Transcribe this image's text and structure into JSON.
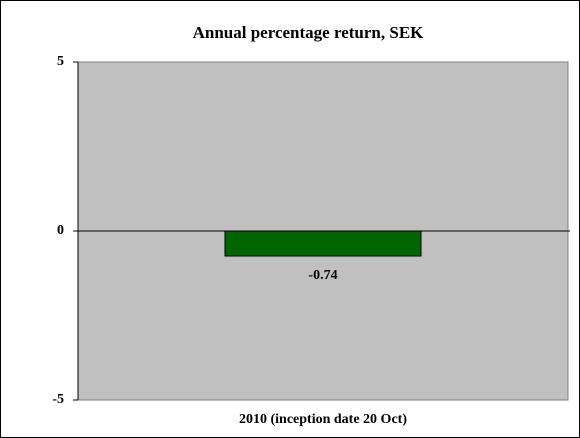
{
  "chart_data": {
    "type": "bar",
    "title": "Annual percentage return, SEK",
    "categories": [
      "2010 (inception date 20 Oct)"
    ],
    "values": [
      -0.74
    ],
    "color": "#006400",
    "ylim": [
      -5,
      5
    ],
    "yticks": [
      -5,
      0,
      5
    ],
    "grid": false
  }
}
